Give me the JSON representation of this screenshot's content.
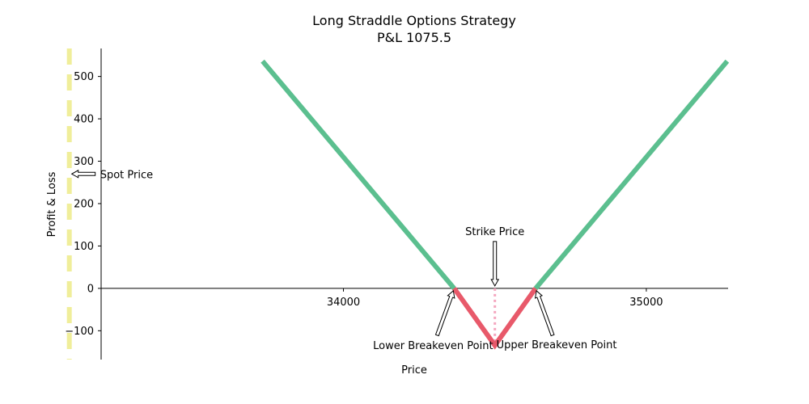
{
  "chart_data": {
    "type": "line",
    "title": "Long Straddle Options Strategy",
    "subtitle": "P&L 1075.5",
    "xlabel": "Price",
    "ylabel": "Profit & Loss",
    "xlim": [
      33200,
      35270
    ],
    "ylim": [
      -168,
      566
    ],
    "xticks": [
      34000,
      35000
    ],
    "xtick_labels": [
      "34000",
      "35000"
    ],
    "yticks": [
      -100,
      0,
      100,
      200,
      300,
      400,
      500
    ],
    "ytick_labels": [
      "−100",
      "0",
      "100",
      "200",
      "300",
      "400",
      "500"
    ],
    "grid": false,
    "strike": 34500,
    "spot": 33095,
    "breakevens": [
      34365.5,
      34634.5
    ],
    "series": [
      {
        "role": "profit-left",
        "color": "#5bbf8f",
        "x": [
          33733,
          34365.5
        ],
        "y": [
          536,
          0
        ]
      },
      {
        "role": "loss",
        "color": "#e8596a",
        "x": [
          34365.5,
          34500,
          34634.5
        ],
        "y": [
          0,
          -134.5,
          0
        ]
      },
      {
        "role": "profit-right",
        "color": "#5bbf8f",
        "x": [
          34634.5,
          35267
        ],
        "y": [
          0,
          536
        ]
      }
    ],
    "spot_line_color": "#f0ee9a",
    "strike_line_color": "#f4a6bf",
    "annotations": [
      {
        "label": "Spot Price",
        "x": 33095,
        "y": 270
      },
      {
        "label": "Strike Price",
        "x": 34500,
        "y": 0
      },
      {
        "label": "Lower Breakeven Point",
        "x": 34365.5,
        "y": 0
      },
      {
        "label": "Upper Breakeven Point",
        "x": 34634.5,
        "y": 0
      }
    ]
  }
}
